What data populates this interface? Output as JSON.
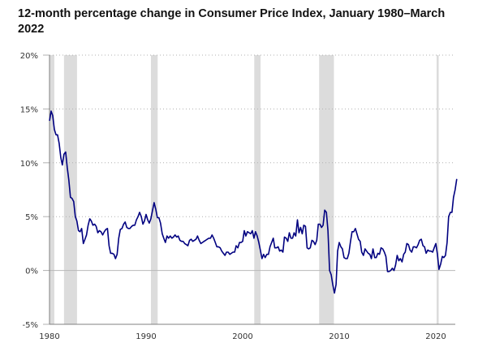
{
  "chart_data": {
    "type": "line",
    "title": "12-month percentage change in Consumer Price Index, January 1980–March 2022",
    "xlabel": "",
    "ylabel": "",
    "xlim": [
      1980.0,
      2022.25
    ],
    "ylim": [
      -5,
      20
    ],
    "x_ticks": [
      {
        "value": 1980,
        "label": "1980"
      },
      {
        "value": 1990,
        "label": "1990"
      },
      {
        "value": 2000,
        "label": "2000"
      },
      {
        "value": 2010,
        "label": "2010"
      },
      {
        "value": 2020,
        "label": "2020"
      }
    ],
    "y_ticks": [
      {
        "value": -5,
        "label": "-5%"
      },
      {
        "value": 0,
        "label": "0%"
      },
      {
        "value": 5,
        "label": "5%"
      },
      {
        "value": 10,
        "label": "10%"
      },
      {
        "value": 15,
        "label": "15%"
      },
      {
        "value": 20,
        "label": "20%"
      }
    ],
    "grid": "horizontal dotted",
    "legend": "none",
    "recessions": [
      {
        "start": 1980.0,
        "end": 1980.5
      },
      {
        "start": 1981.5,
        "end": 1982.85
      },
      {
        "start": 1990.5,
        "end": 1991.2
      },
      {
        "start": 2001.2,
        "end": 2001.85
      },
      {
        "start": 2007.92,
        "end": 2009.45
      },
      {
        "start": 2020.08,
        "end": 2020.3
      }
    ],
    "series": [
      {
        "name": "CPI 12-month % change",
        "color": "#000080",
        "points": [
          [
            1980.0,
            13.9
          ],
          [
            1980.17,
            14.8
          ],
          [
            1980.33,
            14.4
          ],
          [
            1980.5,
            13.1
          ],
          [
            1980.67,
            12.6
          ],
          [
            1980.83,
            12.6
          ],
          [
            1981.0,
            11.8
          ],
          [
            1981.17,
            10.5
          ],
          [
            1981.33,
            9.8
          ],
          [
            1981.5,
            10.8
          ],
          [
            1981.67,
            11.0
          ],
          [
            1981.83,
            9.6
          ],
          [
            1982.0,
            8.4
          ],
          [
            1982.17,
            6.8
          ],
          [
            1982.33,
            6.7
          ],
          [
            1982.5,
            6.4
          ],
          [
            1982.67,
            5.0
          ],
          [
            1982.83,
            4.6
          ],
          [
            1983.0,
            3.7
          ],
          [
            1983.17,
            3.6
          ],
          [
            1983.33,
            3.9
          ],
          [
            1983.5,
            2.5
          ],
          [
            1983.67,
            2.9
          ],
          [
            1983.83,
            3.3
          ],
          [
            1984.0,
            4.2
          ],
          [
            1984.17,
            4.8
          ],
          [
            1984.33,
            4.6
          ],
          [
            1984.5,
            4.2
          ],
          [
            1984.67,
            4.3
          ],
          [
            1984.83,
            4.1
          ],
          [
            1985.0,
            3.5
          ],
          [
            1985.17,
            3.7
          ],
          [
            1985.33,
            3.6
          ],
          [
            1985.5,
            3.3
          ],
          [
            1985.67,
            3.6
          ],
          [
            1985.83,
            3.8
          ],
          [
            1986.0,
            3.9
          ],
          [
            1986.17,
            2.3
          ],
          [
            1986.33,
            1.6
          ],
          [
            1986.5,
            1.6
          ],
          [
            1986.67,
            1.5
          ],
          [
            1986.83,
            1.1
          ],
          [
            1987.0,
            1.5
          ],
          [
            1987.17,
            3.0
          ],
          [
            1987.33,
            3.8
          ],
          [
            1987.5,
            3.9
          ],
          [
            1987.67,
            4.3
          ],
          [
            1987.83,
            4.5
          ],
          [
            1988.0,
            4.0
          ],
          [
            1988.17,
            3.9
          ],
          [
            1988.33,
            3.9
          ],
          [
            1988.5,
            4.1
          ],
          [
            1988.67,
            4.2
          ],
          [
            1988.83,
            4.2
          ],
          [
            1989.0,
            4.7
          ],
          [
            1989.17,
            5.0
          ],
          [
            1989.33,
            5.4
          ],
          [
            1989.5,
            5.0
          ],
          [
            1989.67,
            4.3
          ],
          [
            1989.83,
            4.6
          ],
          [
            1990.0,
            5.2
          ],
          [
            1990.17,
            4.7
          ],
          [
            1990.33,
            4.4
          ],
          [
            1990.5,
            4.8
          ],
          [
            1990.67,
            5.6
          ],
          [
            1990.83,
            6.3
          ],
          [
            1991.0,
            5.7
          ],
          [
            1991.17,
            4.9
          ],
          [
            1991.33,
            4.9
          ],
          [
            1991.5,
            4.4
          ],
          [
            1991.67,
            3.4
          ],
          [
            1991.83,
            3.0
          ],
          [
            1992.0,
            2.6
          ],
          [
            1992.17,
            3.2
          ],
          [
            1992.33,
            3.0
          ],
          [
            1992.5,
            3.2
          ],
          [
            1992.67,
            3.0
          ],
          [
            1992.83,
            3.1
          ],
          [
            1993.0,
            3.3
          ],
          [
            1993.17,
            3.1
          ],
          [
            1993.33,
            3.2
          ],
          [
            1993.5,
            2.8
          ],
          [
            1993.67,
            2.7
          ],
          [
            1993.83,
            2.7
          ],
          [
            1994.0,
            2.5
          ],
          [
            1994.17,
            2.4
          ],
          [
            1994.33,
            2.3
          ],
          [
            1994.5,
            2.8
          ],
          [
            1994.67,
            2.9
          ],
          [
            1994.83,
            2.7
          ],
          [
            1995.0,
            2.8
          ],
          [
            1995.17,
            2.9
          ],
          [
            1995.33,
            3.2
          ],
          [
            1995.5,
            2.8
          ],
          [
            1995.67,
            2.5
          ],
          [
            1995.83,
            2.6
          ],
          [
            1996.0,
            2.7
          ],
          [
            1996.17,
            2.8
          ],
          [
            1996.33,
            2.9
          ],
          [
            1996.5,
            3.0
          ],
          [
            1996.67,
            3.0
          ],
          [
            1996.83,
            3.3
          ],
          [
            1997.0,
            3.0
          ],
          [
            1997.17,
            2.6
          ],
          [
            1997.33,
            2.2
          ],
          [
            1997.5,
            2.2
          ],
          [
            1997.67,
            2.1
          ],
          [
            1997.83,
            1.8
          ],
          [
            1998.0,
            1.6
          ],
          [
            1998.17,
            1.4
          ],
          [
            1998.33,
            1.7
          ],
          [
            1998.5,
            1.7
          ],
          [
            1998.67,
            1.5
          ],
          [
            1998.83,
            1.6
          ],
          [
            1999.0,
            1.7
          ],
          [
            1999.17,
            1.7
          ],
          [
            1999.33,
            2.3
          ],
          [
            1999.5,
            2.1
          ],
          [
            1999.67,
            2.6
          ],
          [
            1999.83,
            2.6
          ],
          [
            2000.0,
            2.7
          ],
          [
            2000.17,
            3.7
          ],
          [
            2000.33,
            3.2
          ],
          [
            2000.5,
            3.6
          ],
          [
            2000.67,
            3.5
          ],
          [
            2000.83,
            3.4
          ],
          [
            2001.0,
            3.7
          ],
          [
            2001.17,
            3.0
          ],
          [
            2001.33,
            3.6
          ],
          [
            2001.5,
            3.2
          ],
          [
            2001.67,
            2.6
          ],
          [
            2001.83,
            1.9
          ],
          [
            2002.0,
            1.1
          ],
          [
            2002.17,
            1.5
          ],
          [
            2002.33,
            1.2
          ],
          [
            2002.5,
            1.5
          ],
          [
            2002.67,
            1.5
          ],
          [
            2002.83,
            2.2
          ],
          [
            2003.0,
            2.6
          ],
          [
            2003.17,
            3.0
          ],
          [
            2003.33,
            2.1
          ],
          [
            2003.5,
            2.1
          ],
          [
            2003.67,
            2.2
          ],
          [
            2003.83,
            1.8
          ],
          [
            2004.0,
            1.9
          ],
          [
            2004.17,
            1.7
          ],
          [
            2004.33,
            3.1
          ],
          [
            2004.5,
            3.0
          ],
          [
            2004.67,
            2.7
          ],
          [
            2004.83,
            3.5
          ],
          [
            2005.0,
            3.0
          ],
          [
            2005.17,
            3.0
          ],
          [
            2005.33,
            3.5
          ],
          [
            2005.5,
            3.2
          ],
          [
            2005.67,
            4.7
          ],
          [
            2005.83,
            3.5
          ],
          [
            2006.0,
            4.0
          ],
          [
            2006.17,
            3.4
          ],
          [
            2006.33,
            4.2
          ],
          [
            2006.5,
            4.1
          ],
          [
            2006.67,
            2.1
          ],
          [
            2006.83,
            2.0
          ],
          [
            2007.0,
            2.1
          ],
          [
            2007.17,
            2.8
          ],
          [
            2007.33,
            2.7
          ],
          [
            2007.5,
            2.4
          ],
          [
            2007.67,
            2.8
          ],
          [
            2007.83,
            4.3
          ],
          [
            2008.0,
            4.3
          ],
          [
            2008.17,
            4.0
          ],
          [
            2008.33,
            4.2
          ],
          [
            2008.5,
            5.6
          ],
          [
            2008.67,
            5.4
          ],
          [
            2008.83,
            3.7
          ],
          [
            2009.0,
            0.0
          ],
          [
            2009.17,
            -0.4
          ],
          [
            2009.33,
            -1.3
          ],
          [
            2009.5,
            -2.1
          ],
          [
            2009.67,
            -1.3
          ],
          [
            2009.83,
            1.8
          ],
          [
            2010.0,
            2.6
          ],
          [
            2010.17,
            2.2
          ],
          [
            2010.33,
            2.0
          ],
          [
            2010.5,
            1.2
          ],
          [
            2010.67,
            1.1
          ],
          [
            2010.83,
            1.1
          ],
          [
            2011.0,
            1.6
          ],
          [
            2011.17,
            2.7
          ],
          [
            2011.33,
            3.6
          ],
          [
            2011.5,
            3.6
          ],
          [
            2011.67,
            3.9
          ],
          [
            2011.83,
            3.4
          ],
          [
            2012.0,
            2.9
          ],
          [
            2012.17,
            2.7
          ],
          [
            2012.33,
            1.7
          ],
          [
            2012.5,
            1.4
          ],
          [
            2012.67,
            2.0
          ],
          [
            2012.83,
            1.8
          ],
          [
            2013.0,
            1.6
          ],
          [
            2013.17,
            1.5
          ],
          [
            2013.33,
            1.1
          ],
          [
            2013.5,
            2.0
          ],
          [
            2013.67,
            1.2
          ],
          [
            2013.83,
            1.2
          ],
          [
            2014.0,
            1.6
          ],
          [
            2014.17,
            1.5
          ],
          [
            2014.33,
            2.1
          ],
          [
            2014.5,
            2.0
          ],
          [
            2014.67,
            1.7
          ],
          [
            2014.83,
            1.3
          ],
          [
            2015.0,
            -0.1
          ],
          [
            2015.17,
            -0.1
          ],
          [
            2015.33,
            0.0
          ],
          [
            2015.5,
            0.2
          ],
          [
            2015.67,
            -0.0
          ],
          [
            2015.83,
            0.5
          ],
          [
            2016.0,
            1.4
          ],
          [
            2016.17,
            0.9
          ],
          [
            2016.33,
            1.1
          ],
          [
            2016.5,
            0.8
          ],
          [
            2016.67,
            1.5
          ],
          [
            2016.83,
            1.7
          ],
          [
            2017.0,
            2.5
          ],
          [
            2017.17,
            2.4
          ],
          [
            2017.33,
            1.9
          ],
          [
            2017.5,
            1.7
          ],
          [
            2017.67,
            2.2
          ],
          [
            2017.83,
            2.2
          ],
          [
            2018.0,
            2.1
          ],
          [
            2018.17,
            2.4
          ],
          [
            2018.33,
            2.8
          ],
          [
            2018.5,
            2.9
          ],
          [
            2018.67,
            2.3
          ],
          [
            2018.83,
            2.2
          ],
          [
            2019.0,
            1.6
          ],
          [
            2019.17,
            1.9
          ],
          [
            2019.33,
            1.8
          ],
          [
            2019.5,
            1.8
          ],
          [
            2019.67,
            1.7
          ],
          [
            2019.83,
            2.1
          ],
          [
            2020.0,
            2.5
          ],
          [
            2020.17,
            1.5
          ],
          [
            2020.33,
            0.1
          ],
          [
            2020.5,
            0.6
          ],
          [
            2020.67,
            1.3
          ],
          [
            2020.83,
            1.2
          ],
          [
            2021.0,
            1.4
          ],
          [
            2021.17,
            2.6
          ],
          [
            2021.33,
            5.0
          ],
          [
            2021.5,
            5.4
          ],
          [
            2021.67,
            5.4
          ],
          [
            2021.83,
            6.8
          ],
          [
            2022.0,
            7.5
          ],
          [
            2022.17,
            8.5
          ]
        ]
      }
    ]
  }
}
